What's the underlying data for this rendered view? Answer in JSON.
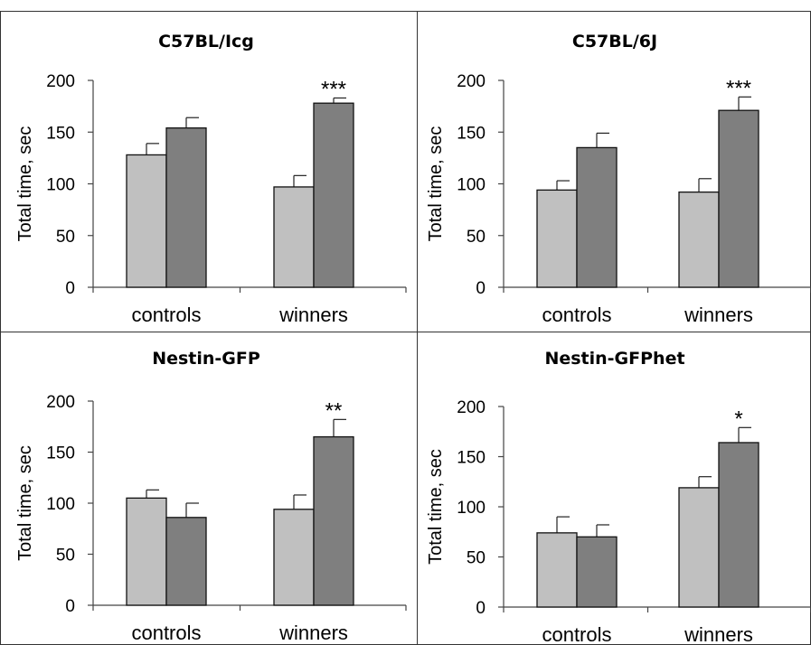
{
  "chart_data": [
    {
      "type": "bar",
      "title": "C57BL/Icg",
      "ylabel": "Total time, sec",
      "xlabel": "",
      "ylim": [
        0,
        200
      ],
      "yticks": [
        0,
        50,
        100,
        150,
        200
      ],
      "categories": [
        "controls",
        "winners"
      ],
      "series": [
        {
          "values": [
            128,
            97
          ],
          "errors": [
            11,
            11
          ],
          "color": "#c0c0c0"
        },
        {
          "values": [
            154,
            178
          ],
          "errors": [
            10,
            5
          ],
          "color": "#7f7f7f"
        }
      ],
      "annotations": [
        {
          "category": "winners",
          "text": "***"
        }
      ],
      "grid": false
    },
    {
      "type": "bar",
      "title": "C57BL/6J",
      "ylabel": "Total time, sec",
      "xlabel": "",
      "ylim": [
        0,
        200
      ],
      "yticks": [
        0,
        50,
        100,
        150,
        200
      ],
      "categories": [
        "controls",
        "winners"
      ],
      "series": [
        {
          "values": [
            94,
            92
          ],
          "errors": [
            9,
            13
          ],
          "color": "#c0c0c0"
        },
        {
          "values": [
            135,
            171
          ],
          "errors": [
            14,
            13
          ],
          "color": "#7f7f7f"
        }
      ],
      "annotations": [
        {
          "category": "winners",
          "text": "***"
        }
      ],
      "grid": false
    },
    {
      "type": "bar",
      "title": "Nestin-GFP",
      "ylabel": "Total time, sec",
      "xlabel": "",
      "ylim": [
        0,
        200
      ],
      "yticks": [
        0,
        50,
        100,
        150,
        200
      ],
      "categories": [
        "controls",
        "winners"
      ],
      "series": [
        {
          "values": [
            105,
            94
          ],
          "errors": [
            8,
            14
          ],
          "color": "#c0c0c0"
        },
        {
          "values": [
            86,
            165
          ],
          "errors": [
            14,
            17
          ],
          "color": "#7f7f7f"
        }
      ],
      "annotations": [
        {
          "category": "winners",
          "text": "**"
        }
      ],
      "grid": false
    },
    {
      "type": "bar",
      "title": "Nestin-GFPhet",
      "ylabel": "Total time, sec",
      "xlabel": "",
      "ylim": [
        0,
        200
      ],
      "yticks": [
        0,
        50,
        100,
        150,
        200
      ],
      "categories": [
        "controls",
        "winners"
      ],
      "series": [
        {
          "values": [
            74,
            119
          ],
          "errors": [
            16,
            11
          ],
          "color": "#c0c0c0"
        },
        {
          "values": [
            70,
            164
          ],
          "errors": [
            12,
            15
          ],
          "color": "#7f7f7f"
        }
      ],
      "annotations": [
        {
          "category": "winners",
          "text": "*"
        }
      ],
      "grid": false
    }
  ]
}
